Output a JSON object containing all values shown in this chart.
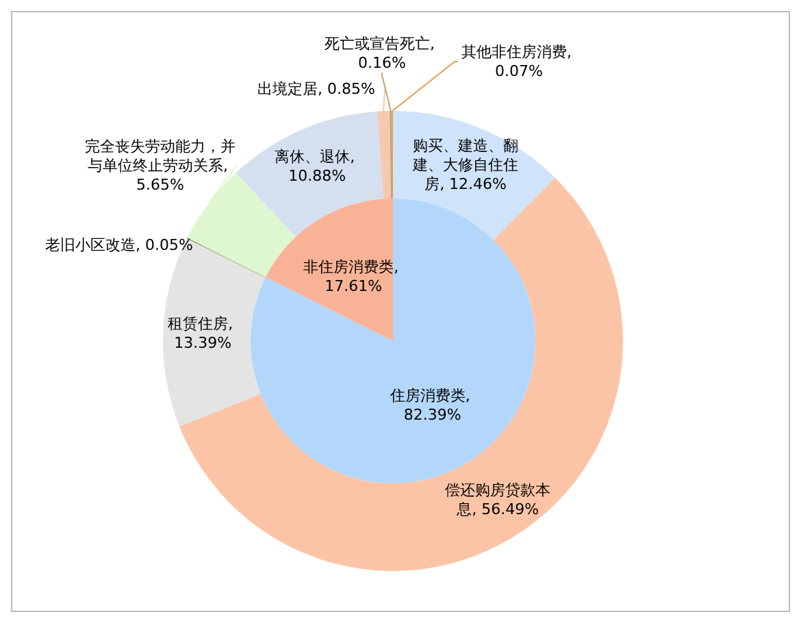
{
  "chart_data": [
    {
      "type": "pie",
      "data_labels": true,
      "categories": [
        "住房消费类",
        "非住房消费类"
      ],
      "values": [
        82.39,
        17.61
      ],
      "value_labels": [
        ", 82.39%",
        ", 17.61%"
      ],
      "colors": [
        "#b3d7fb",
        "#f8b396"
      ]
    },
    {
      "type": "donut",
      "data_labels": true,
      "categories": [
        "购买、建造、翻建、大修自住住房",
        "偿还购房贷款本息",
        "租赁住房",
        "老旧小区改造",
        "完全丧失劳动能力，并与单位终止劳动关系",
        "离休、退休",
        "出境定居",
        "死亡或宣告死亡",
        "其他非住房消费"
      ],
      "values": [
        12.46,
        56.49,
        13.39,
        0.05,
        5.65,
        10.88,
        0.85,
        0.16,
        0.07
      ],
      "value_labels": [
        ", 12.46%",
        ", 56.49%",
        ", 13.39%",
        ", 0.05%",
        ", 5.65%",
        ", 10.88%",
        ", 0.85%",
        ", 0.16%",
        ", 0.07%"
      ],
      "colors": [
        "#cfe4fb",
        "#fcc4a6",
        "#e4e4e4",
        "#7f9f4f",
        "#dff7d0",
        "#d4dfef",
        "#f7c8b0",
        "#c9a070",
        "#e0a050"
      ]
    }
  ]
}
